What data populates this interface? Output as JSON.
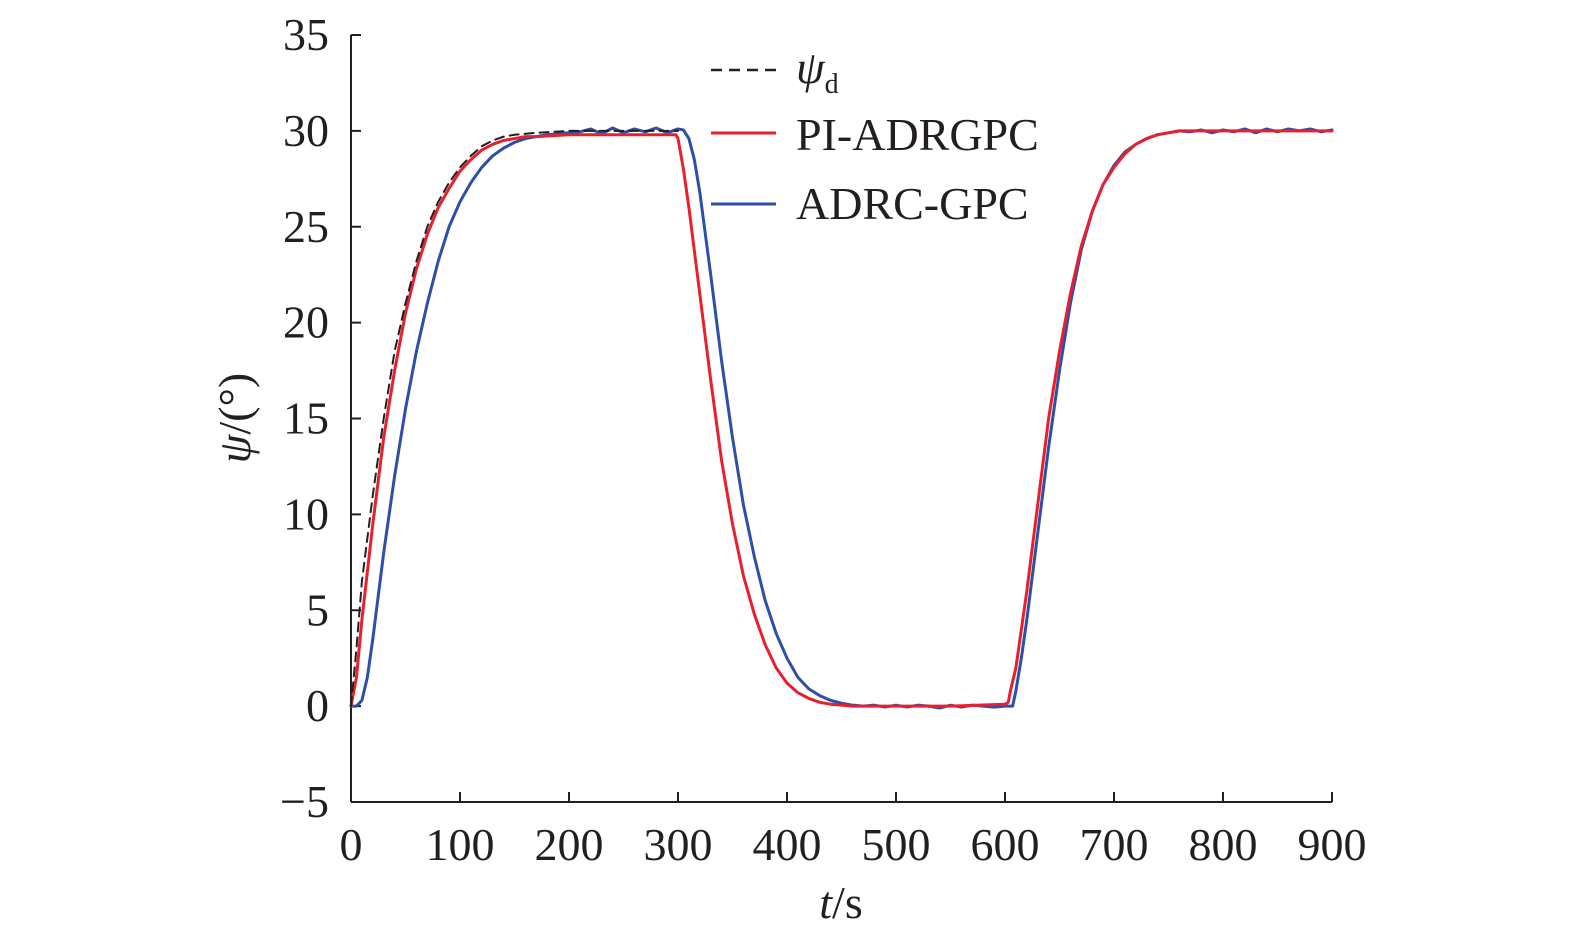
{
  "chart_data": {
    "type": "line",
    "title": "",
    "xlabel": {
      "var": "t",
      "unit": "/s"
    },
    "ylabel": {
      "var": "ψ",
      "unit": "/(°)"
    },
    "xlim": [
      0,
      900
    ],
    "ylim": [
      -5,
      35
    ],
    "xticks": [
      0,
      100,
      200,
      300,
      400,
      500,
      600,
      700,
      800,
      900
    ],
    "yticks": [
      -5,
      0,
      5,
      10,
      15,
      20,
      25,
      30,
      35
    ],
    "ytick_labels": [
      "−5",
      "0",
      "5",
      "10",
      "15",
      "20",
      "25",
      "30",
      "35"
    ],
    "grid": false,
    "legend_position": "top-center",
    "series": [
      {
        "name": "ψ",
        "name_sub": "d",
        "style": "dashed",
        "color": "#231f20",
        "x": [
          0,
          5,
          10,
          20,
          30,
          40,
          50,
          60,
          70,
          80,
          90,
          100,
          110,
          120,
          130,
          140,
          150,
          170,
          200,
          250,
          300
        ],
        "y": [
          0,
          3,
          6.5,
          11,
          15,
          18.5,
          21,
          23.2,
          25,
          26.3,
          27.3,
          28.1,
          28.7,
          29.2,
          29.5,
          29.7,
          29.8,
          29.9,
          30,
          30,
          30
        ]
      },
      {
        "name": "PI-ADRGPC",
        "style": "solid",
        "color": "#e8202e",
        "x": [
          0,
          5,
          10,
          20,
          30,
          40,
          50,
          60,
          70,
          80,
          90,
          100,
          110,
          120,
          130,
          140,
          150,
          160,
          170,
          200,
          250,
          298,
          300,
          305,
          310,
          320,
          330,
          340,
          350,
          360,
          370,
          380,
          390,
          400,
          410,
          420,
          430,
          440,
          450,
          460,
          470,
          500,
          550,
          600,
          603,
          605,
          610,
          620,
          630,
          640,
          650,
          660,
          670,
          680,
          690,
          700,
          710,
          720,
          730,
          740,
          750,
          760,
          780,
          800,
          850,
          900
        ],
        "y": [
          0,
          1.5,
          4.5,
          9.5,
          14,
          17.5,
          20.5,
          22.8,
          24.6,
          26,
          27,
          27.9,
          28.5,
          29,
          29.3,
          29.5,
          29.6,
          29.7,
          29.7,
          29.8,
          29.8,
          29.8,
          29.6,
          28,
          26,
          21.5,
          17,
          12.8,
          9.5,
          6.8,
          4.8,
          3.2,
          2,
          1.2,
          0.7,
          0.4,
          0.2,
          0.1,
          0.05,
          0,
          0,
          0,
          0,
          0.1,
          0.2,
          0.8,
          2,
          6,
          10.5,
          15,
          18.5,
          21.5,
          24,
          25.8,
          27.2,
          28.1,
          28.8,
          29.3,
          29.6,
          29.8,
          29.9,
          30,
          30,
          30,
          30,
          30
        ]
      },
      {
        "name": "ADRC-GPC",
        "style": "solid",
        "color": "#2e4fa8",
        "x": [
          0,
          5,
          10,
          15,
          20,
          30,
          40,
          50,
          60,
          70,
          80,
          90,
          100,
          110,
          120,
          130,
          140,
          150,
          160,
          170,
          180,
          200,
          210,
          220,
          230,
          240,
          250,
          260,
          270,
          280,
          290,
          300,
          305,
          310,
          315,
          320,
          330,
          340,
          350,
          360,
          370,
          380,
          390,
          400,
          410,
          420,
          430,
          440,
          450,
          460,
          470,
          480,
          490,
          500,
          510,
          520,
          530,
          540,
          550,
          560,
          570,
          580,
          590,
          600,
          607,
          610,
          615,
          620,
          630,
          640,
          650,
          660,
          670,
          680,
          690,
          700,
          710,
          720,
          730,
          740,
          750,
          760,
          770,
          780,
          790,
          800,
          810,
          820,
          830,
          840,
          850,
          860,
          870,
          880,
          890,
          900
        ],
        "y": [
          0,
          0,
          0.3,
          1.5,
          3.5,
          8,
          12,
          15.5,
          18.5,
          21,
          23.2,
          25,
          26.3,
          27.3,
          28.1,
          28.7,
          29.1,
          29.4,
          29.6,
          29.7,
          29.8,
          29.9,
          29.95,
          30.1,
          29.85,
          30.15,
          29.9,
          30.1,
          29.95,
          30.15,
          29.9,
          30.1,
          30.05,
          29.6,
          28.5,
          26.8,
          22.5,
          18,
          14,
          10.5,
          7.8,
          5.5,
          3.8,
          2.5,
          1.5,
          0.9,
          0.55,
          0.3,
          0.15,
          0.05,
          0,
          0.05,
          -0.05,
          0.05,
          -0.05,
          0.05,
          0,
          -0.1,
          0.05,
          -0.05,
          0.05,
          0,
          -0.05,
          0,
          0,
          0.8,
          2.5,
          4.5,
          9,
          13.5,
          17.5,
          21,
          23.8,
          25.8,
          27.2,
          28.2,
          28.9,
          29.3,
          29.6,
          29.8,
          29.9,
          30,
          29.95,
          30.05,
          29.9,
          30.05,
          29.95,
          30.1,
          29.9,
          30.1,
          29.95,
          30.1,
          30,
          30.1,
          29.95,
          30.05
        ]
      }
    ]
  }
}
